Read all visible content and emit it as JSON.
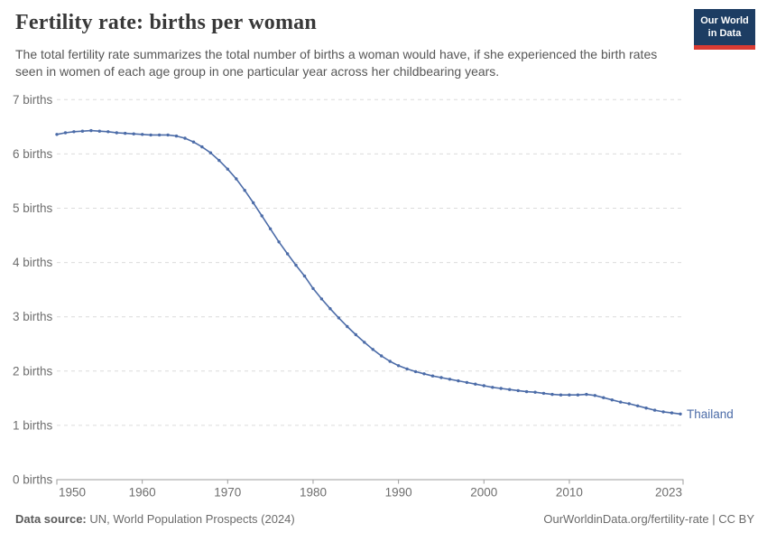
{
  "header": {
    "title": "Fertility rate: births per woman",
    "subtitle": "The total fertility rate summarizes the total number of births a woman would have, if she experienced the birth rates seen in women of each age group in one particular year across her childbearing years.",
    "logo": {
      "line1": "Our World",
      "line2": "in Data"
    }
  },
  "chart_data": {
    "type": "line",
    "title": "Fertility rate: births per woman",
    "unit": "births",
    "xlabel": "",
    "ylabel": "",
    "xlim": [
      1950,
      2023
    ],
    "ylim": [
      0,
      7
    ],
    "grid": "horizontal-dashed",
    "legend_position": "end-of-line-label",
    "x_ticks": [
      1950,
      1960,
      1970,
      1980,
      1990,
      2000,
      2010,
      2023
    ],
    "y_ticks": [
      {
        "value": 0,
        "label": "0 births"
      },
      {
        "value": 1,
        "label": "1 births"
      },
      {
        "value": 2,
        "label": "2 births"
      },
      {
        "value": 3,
        "label": "3 births"
      },
      {
        "value": 4,
        "label": "4 births"
      },
      {
        "value": 5,
        "label": "5 births"
      },
      {
        "value": 6,
        "label": "6 births"
      },
      {
        "value": 7,
        "label": "7 births"
      }
    ],
    "series": [
      {
        "name": "Thailand",
        "color": "#4C6CA8",
        "years": [
          1950,
          1951,
          1952,
          1953,
          1954,
          1955,
          1956,
          1957,
          1958,
          1959,
          1960,
          1961,
          1962,
          1963,
          1964,
          1965,
          1966,
          1967,
          1968,
          1969,
          1970,
          1971,
          1972,
          1973,
          1974,
          1975,
          1976,
          1977,
          1978,
          1979,
          1980,
          1981,
          1982,
          1983,
          1984,
          1985,
          1986,
          1987,
          1988,
          1989,
          1990,
          1991,
          1992,
          1993,
          1994,
          1995,
          1996,
          1997,
          1998,
          1999,
          2000,
          2001,
          2002,
          2003,
          2004,
          2005,
          2006,
          2007,
          2008,
          2009,
          2010,
          2011,
          2012,
          2013,
          2014,
          2015,
          2016,
          2017,
          2018,
          2019,
          2020,
          2021,
          2022,
          2023
        ],
        "values": [
          6.36,
          6.39,
          6.41,
          6.42,
          6.43,
          6.42,
          6.41,
          6.39,
          6.38,
          6.37,
          6.36,
          6.35,
          6.35,
          6.35,
          6.33,
          6.29,
          6.22,
          6.13,
          6.02,
          5.88,
          5.72,
          5.54,
          5.33,
          5.1,
          4.86,
          4.62,
          4.38,
          4.16,
          3.95,
          3.75,
          3.52,
          3.33,
          3.15,
          2.98,
          2.82,
          2.67,
          2.53,
          2.4,
          2.28,
          2.18,
          2.1,
          2.04,
          1.99,
          1.95,
          1.91,
          1.88,
          1.85,
          1.82,
          1.79,
          1.76,
          1.73,
          1.7,
          1.68,
          1.66,
          1.64,
          1.62,
          1.61,
          1.59,
          1.57,
          1.56,
          1.56,
          1.56,
          1.57,
          1.55,
          1.51,
          1.47,
          1.43,
          1.4,
          1.36,
          1.32,
          1.28,
          1.25,
          1.23,
          1.21
        ]
      }
    ]
  },
  "footer": {
    "datasource_label": "Data source:",
    "datasource_value": "UN, World Population Prospects (2024)",
    "url": "OurWorldinData.org/fertility-rate",
    "separator": " | ",
    "license": "CC BY"
  },
  "colors": {
    "line": "#4C6CA8",
    "logo_background": "#1D3D63",
    "logo_accent": "#D93B33",
    "title_text": "#383838",
    "subtitle_text": "#565656",
    "axis_text": "#6E6E6E",
    "gridline": "#DCDCDC",
    "axis_line": "#9C9C9C"
  }
}
